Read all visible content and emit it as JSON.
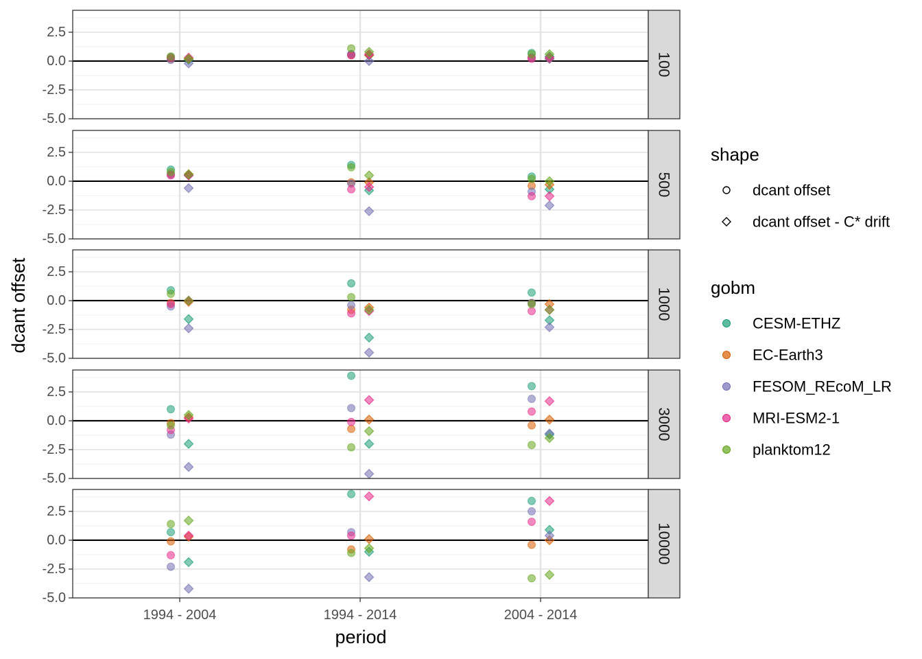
{
  "chart_data": {
    "type": "scatter",
    "xlabel": "period",
    "ylabel": "dcant offset",
    "categories": [
      "1994 - 2004",
      "1994 - 2014",
      "2004 - 2014"
    ],
    "ylim": [
      -5.0,
      4.4
    ],
    "yticks": [
      -5.0,
      -2.5,
      0.0,
      2.5
    ],
    "ytick_labels": [
      "-5.0",
      "-2.5",
      "0.0",
      "2.5"
    ],
    "facets": [
      "100",
      "500",
      "1000",
      "3000",
      "10000"
    ],
    "zero_line": true,
    "grid": true,
    "legend_position": "right",
    "legends": [
      {
        "title": "shape",
        "items": [
          {
            "label": "dcant offset",
            "shape": "circle"
          },
          {
            "label": "dcant offset - C* drift",
            "shape": "diamond"
          }
        ]
      },
      {
        "title": "gobm",
        "items": [
          {
            "label": "CESM-ETHZ",
            "color": "#1B9E77"
          },
          {
            "label": "EC-Earth3",
            "color": "#D95F02"
          },
          {
            "label": "FESOM_REcoM_LR",
            "color": "#7570B3"
          },
          {
            "label": "MRI-ESM2-1",
            "color": "#E7298A"
          },
          {
            "label": "planktom12",
            "color": "#66A61E"
          }
        ]
      }
    ],
    "series": [
      {
        "name": "CESM-ETHZ",
        "shape": "circle",
        "values": {
          "100": [
            0.35,
            0.6,
            0.7
          ],
          "500": [
            1.0,
            1.4,
            0.4
          ],
          "1000": [
            0.9,
            1.5,
            0.7
          ],
          "3000": [
            1.0,
            3.9,
            3.0
          ],
          "10000": [
            0.7,
            4.0,
            3.4
          ]
        }
      },
      {
        "name": "CESM-ETHZ",
        "shape": "diamond",
        "values": {
          "100": [
            0.1,
            0.5,
            0.4
          ],
          "500": [
            0.5,
            -0.8,
            -0.7
          ],
          "1000": [
            -1.6,
            -3.2,
            -1.7
          ],
          "3000": [
            -2.0,
            -2.0,
            -1.2
          ],
          "10000": [
            -1.9,
            -1.0,
            0.9
          ]
        }
      },
      {
        "name": "EC-Earth3",
        "shape": "circle",
        "values": {
          "100": [
            0.2,
            0.5,
            0.3
          ],
          "500": [
            0.6,
            -0.1,
            -0.4
          ],
          "1000": [
            -0.2,
            -0.8,
            -0.2
          ],
          "3000": [
            -0.2,
            -0.7,
            -0.4
          ],
          "10000": [
            -0.1,
            -0.8,
            -0.4
          ]
        }
      },
      {
        "name": "EC-Earth3",
        "shape": "diamond",
        "values": {
          "100": [
            0.2,
            0.5,
            0.2
          ],
          "500": [
            0.6,
            -0.1,
            -0.3
          ],
          "1000": [
            -0.1,
            -0.6,
            -0.3
          ],
          "3000": [
            0.3,
            0.1,
            0.1
          ],
          "10000": [
            0.3,
            0.1,
            -0.0
          ]
        }
      },
      {
        "name": "FESOM_REcoM_LR",
        "shape": "circle",
        "values": {
          "100": [
            0.1,
            0.6,
            0.3
          ],
          "500": [
            0.6,
            -0.2,
            -0.9
          ],
          "1000": [
            -0.5,
            -0.4,
            -0.2
          ],
          "3000": [
            -1.2,
            1.1,
            1.9
          ],
          "10000": [
            -2.3,
            0.7,
            2.5
          ]
        }
      },
      {
        "name": "FESOM_REcoM_LR",
        "shape": "diamond",
        "values": {
          "100": [
            -0.2,
            0.0,
            0.2
          ],
          "500": [
            -0.6,
            -2.6,
            -2.1
          ],
          "1000": [
            -2.4,
            -4.5,
            -2.3
          ],
          "3000": [
            -4.0,
            -4.6,
            -1.1
          ],
          "10000": [
            -4.2,
            -3.2,
            0.4
          ]
        }
      },
      {
        "name": "MRI-ESM2-1",
        "shape": "circle",
        "values": {
          "100": [
            0.3,
            0.5,
            0.2
          ],
          "500": [
            0.5,
            -0.7,
            -1.3
          ],
          "1000": [
            -0.3,
            -1.1,
            -0.9
          ],
          "3000": [
            -0.8,
            -0.1,
            0.8
          ],
          "10000": [
            -1.3,
            0.4,
            1.6
          ]
        }
      },
      {
        "name": "MRI-ESM2-1",
        "shape": "diamond",
        "values": {
          "100": [
            0.3,
            0.6,
            0.3
          ],
          "500": [
            0.5,
            -0.5,
            -1.3
          ],
          "1000": [
            0.0,
            -0.9,
            -0.8
          ],
          "3000": [
            0.2,
            1.8,
            1.7
          ],
          "10000": [
            0.4,
            3.8,
            3.4
          ]
        }
      },
      {
        "name": "planktom12",
        "shape": "circle",
        "values": {
          "100": [
            0.4,
            1.1,
            0.6
          ],
          "500": [
            0.8,
            1.2,
            0.2
          ],
          "1000": [
            0.6,
            0.3,
            -0.3
          ],
          "3000": [
            -0.4,
            -2.3,
            -2.1
          ],
          "10000": [
            1.4,
            -1.1,
            -3.3
          ]
        }
      },
      {
        "name": "planktom12",
        "shape": "diamond",
        "values": {
          "100": [
            0.2,
            0.8,
            0.6
          ],
          "500": [
            0.6,
            0.5,
            0.0
          ],
          "1000": [
            0.0,
            -0.8,
            -0.8
          ],
          "3000": [
            0.5,
            -0.9,
            -1.5
          ],
          "10000": [
            1.7,
            -0.7,
            -3.0
          ]
        }
      }
    ]
  }
}
